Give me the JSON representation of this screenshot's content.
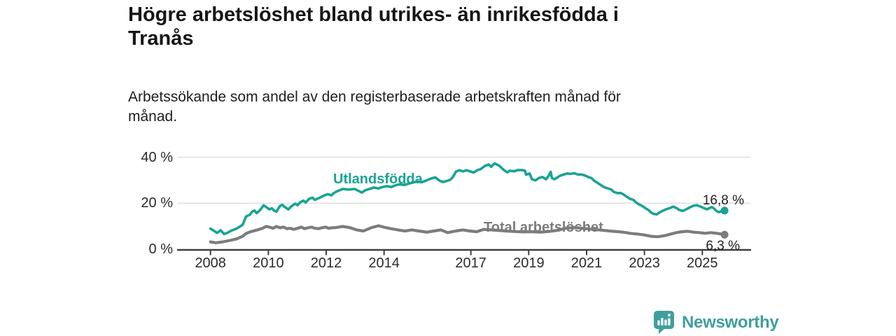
{
  "header": {
    "title_line1": "Högre arbetslöshet bland utrikes- än inrikesfödda i",
    "title_line2": "Tranås",
    "subtitle_line1": "Arbetssökande som andel av den registerbaserade arbetskraften månad för",
    "subtitle_line2": "månad."
  },
  "footer": {
    "brand": "Newsworthy"
  },
  "colors": {
    "accent_teal": "#19a394",
    "line_gray": "#7c7c7c",
    "axis": "#3f3f3f",
    "grid": "#dadada",
    "brand_teal": "#3f9e9e",
    "text_dark": "#161616"
  },
  "chart_data": {
    "type": "line",
    "title": "Högre arbetslöshet bland utrikes- än inrikesfödda i Tranås",
    "subtitle": "Arbetssökande som andel av den registerbaserade arbetskraften månad för månad.",
    "xlabel": "",
    "ylabel": "",
    "xlim": [
      2007.9,
      2026.4
    ],
    "ylim": [
      0,
      40
    ],
    "grid": "horizontal",
    "legend_position": "inline-labels",
    "y_axis": {
      "ticks": [
        {
          "value": 0,
          "label": "0 %"
        },
        {
          "value": 20,
          "label": "20 %"
        },
        {
          "value": 40,
          "label": "40 %"
        }
      ]
    },
    "x_axis": {
      "ticks": [
        {
          "year": 2008,
          "label": "2008"
        },
        {
          "year": 2010,
          "label": "2010"
        },
        {
          "year": 2012,
          "label": "2012"
        },
        {
          "year": 2014,
          "label": "2014"
        },
        {
          "year": 2017,
          "label": "2017"
        },
        {
          "year": 2019,
          "label": "2019"
        },
        {
          "year": 2021,
          "label": "2021"
        },
        {
          "year": 2023,
          "label": "2023"
        },
        {
          "year": 2025,
          "label": "2025"
        }
      ]
    },
    "series": [
      {
        "name": "Utlandsfödda",
        "color": "#19a394",
        "width": 3.6,
        "end_label": "16,8 %",
        "end_value": 16.8,
        "points": [
          [
            2008.0,
            8.9
          ],
          [
            2008.12,
            8.0
          ],
          [
            2008.23,
            7.1
          ],
          [
            2008.35,
            8.2
          ],
          [
            2008.47,
            6.6
          ],
          [
            2008.6,
            7.2
          ],
          [
            2008.71,
            8.0
          ],
          [
            2008.91,
            9.0
          ],
          [
            2009.11,
            10.6
          ],
          [
            2009.23,
            14.2
          ],
          [
            2009.36,
            15.0
          ],
          [
            2009.44,
            16.3
          ],
          [
            2009.52,
            16.8
          ],
          [
            2009.6,
            15.7
          ],
          [
            2009.72,
            17.1
          ],
          [
            2009.84,
            19.1
          ],
          [
            2009.92,
            18.3
          ],
          [
            2010.04,
            17.3
          ],
          [
            2010.12,
            17.8
          ],
          [
            2010.2,
            16.8
          ],
          [
            2010.28,
            16.3
          ],
          [
            2010.4,
            18.8
          ],
          [
            2010.48,
            19.3
          ],
          [
            2010.57,
            18.3
          ],
          [
            2010.69,
            17.3
          ],
          [
            2010.81,
            18.8
          ],
          [
            2010.93,
            19.8
          ],
          [
            2011.01,
            19.1
          ],
          [
            2011.09,
            20.3
          ],
          [
            2011.21,
            21.1
          ],
          [
            2011.29,
            20.3
          ],
          [
            2011.41,
            21.9
          ],
          [
            2011.53,
            22.4
          ],
          [
            2011.61,
            21.4
          ],
          [
            2011.69,
            21.9
          ],
          [
            2011.81,
            22.6
          ],
          [
            2011.93,
            23.4
          ],
          [
            2012.06,
            23.9
          ],
          [
            2012.18,
            23.4
          ],
          [
            2012.26,
            24.4
          ],
          [
            2012.38,
            25.2
          ],
          [
            2012.46,
            25.6
          ],
          [
            2012.58,
            26.2
          ],
          [
            2012.78,
            25.9
          ],
          [
            2012.98,
            26.2
          ],
          [
            2013.14,
            25.2
          ],
          [
            2013.23,
            24.6
          ],
          [
            2013.35,
            25.6
          ],
          [
            2013.5,
            26.2
          ],
          [
            2013.65,
            26.8
          ],
          [
            2013.8,
            26.4
          ],
          [
            2013.95,
            27.0
          ],
          [
            2014.1,
            27.4
          ],
          [
            2014.25,
            27.0
          ],
          [
            2014.4,
            27.8
          ],
          [
            2014.55,
            28.2
          ],
          [
            2014.7,
            27.9
          ],
          [
            2014.85,
            28.5
          ],
          [
            2015.0,
            29.0
          ],
          [
            2015.15,
            29.4
          ],
          [
            2015.3,
            29.1
          ],
          [
            2015.45,
            29.8
          ],
          [
            2015.6,
            30.6
          ],
          [
            2015.77,
            31.2
          ],
          [
            2015.93,
            29.7
          ],
          [
            2016.05,
            29.2
          ],
          [
            2016.17,
            29.7
          ],
          [
            2016.29,
            30.2
          ],
          [
            2016.37,
            31.2
          ],
          [
            2016.49,
            33.8
          ],
          [
            2016.61,
            34.3
          ],
          [
            2016.73,
            33.8
          ],
          [
            2016.85,
            34.3
          ],
          [
            2016.98,
            33.8
          ],
          [
            2017.1,
            33.3
          ],
          [
            2017.22,
            34.3
          ],
          [
            2017.34,
            34.8
          ],
          [
            2017.5,
            36.3
          ],
          [
            2017.62,
            36.8
          ],
          [
            2017.7,
            35.8
          ],
          [
            2017.82,
            37.3
          ],
          [
            2017.98,
            36.3
          ],
          [
            2018.14,
            34.4
          ],
          [
            2018.26,
            33.4
          ],
          [
            2018.34,
            34.1
          ],
          [
            2018.5,
            33.9
          ],
          [
            2018.63,
            34.4
          ],
          [
            2018.75,
            34.4
          ],
          [
            2018.87,
            34.1
          ],
          [
            2018.91,
            32.4
          ],
          [
            2019.03,
            32.9
          ],
          [
            2019.11,
            30.4
          ],
          [
            2019.23,
            29.9
          ],
          [
            2019.35,
            30.9
          ],
          [
            2019.47,
            31.4
          ],
          [
            2019.6,
            30.4
          ],
          [
            2019.68,
            31.7
          ],
          [
            2019.76,
            33.6
          ],
          [
            2019.8,
            31.0
          ],
          [
            2019.88,
            30.4
          ],
          [
            2019.96,
            30.9
          ],
          [
            2020.08,
            31.9
          ],
          [
            2020.2,
            32.4
          ],
          [
            2020.32,
            32.9
          ],
          [
            2020.44,
            32.7
          ],
          [
            2020.57,
            33.0
          ],
          [
            2020.69,
            32.5
          ],
          [
            2020.85,
            32.4
          ],
          [
            2020.97,
            31.9
          ],
          [
            2021.05,
            31.4
          ],
          [
            2021.17,
            30.9
          ],
          [
            2021.25,
            29.9
          ],
          [
            2021.37,
            28.9
          ],
          [
            2021.49,
            27.9
          ],
          [
            2021.62,
            26.9
          ],
          [
            2021.74,
            26.4
          ],
          [
            2021.86,
            25.9
          ],
          [
            2021.94,
            24.9
          ],
          [
            2022.06,
            24.4
          ],
          [
            2022.18,
            24.4
          ],
          [
            2022.26,
            23.9
          ],
          [
            2022.38,
            22.9
          ],
          [
            2022.5,
            21.9
          ],
          [
            2022.62,
            21.4
          ],
          [
            2022.7,
            20.4
          ],
          [
            2022.82,
            19.4
          ],
          [
            2022.91,
            18.9
          ],
          [
            2023.03,
            17.9
          ],
          [
            2023.15,
            16.9
          ],
          [
            2023.23,
            15.9
          ],
          [
            2023.31,
            15.4
          ],
          [
            2023.43,
            15.1
          ],
          [
            2023.51,
            15.9
          ],
          [
            2023.63,
            16.7
          ],
          [
            2023.76,
            17.4
          ],
          [
            2023.88,
            17.9
          ],
          [
            2024.0,
            18.5
          ],
          [
            2024.12,
            17.8
          ],
          [
            2024.2,
            17.1
          ],
          [
            2024.32,
            16.6
          ],
          [
            2024.44,
            17.3
          ],
          [
            2024.56,
            18.1
          ],
          [
            2024.69,
            18.9
          ],
          [
            2024.81,
            19.1
          ],
          [
            2024.93,
            18.6
          ],
          [
            2025.05,
            17.9
          ],
          [
            2025.17,
            17.3
          ],
          [
            2025.25,
            17.9
          ],
          [
            2025.33,
            18.3
          ],
          [
            2025.41,
            17.6
          ],
          [
            2025.49,
            16.6
          ],
          [
            2025.57,
            16.1
          ],
          [
            2025.69,
            16.6
          ],
          [
            2025.77,
            16.8
          ]
        ]
      },
      {
        "name": "Total arbetslöshet",
        "color": "#7c7c7c",
        "width": 4.2,
        "end_label": "6,3 %",
        "end_value": 6.3,
        "points": [
          [
            2008.0,
            3.2
          ],
          [
            2008.18,
            2.8
          ],
          [
            2008.43,
            3.2
          ],
          [
            2008.67,
            3.8
          ],
          [
            2008.91,
            4.5
          ],
          [
            2009.11,
            5.6
          ],
          [
            2009.23,
            6.8
          ],
          [
            2009.39,
            7.6
          ],
          [
            2009.6,
            8.3
          ],
          [
            2009.8,
            9.1
          ],
          [
            2009.92,
            9.9
          ],
          [
            2010.04,
            9.6
          ],
          [
            2010.16,
            9.1
          ],
          [
            2010.28,
            9.9
          ],
          [
            2010.4,
            9.3
          ],
          [
            2010.52,
            9.6
          ],
          [
            2010.64,
            8.9
          ],
          [
            2010.76,
            9.1
          ],
          [
            2010.88,
            8.6
          ],
          [
            2011.01,
            9.1
          ],
          [
            2011.13,
            9.6
          ],
          [
            2011.25,
            8.9
          ],
          [
            2011.37,
            9.3
          ],
          [
            2011.49,
            9.6
          ],
          [
            2011.61,
            9.1
          ],
          [
            2011.73,
            8.9
          ],
          [
            2011.85,
            9.3
          ],
          [
            2011.97,
            9.6
          ],
          [
            2012.09,
            9.1
          ],
          [
            2012.21,
            9.3
          ],
          [
            2012.33,
            9.4
          ],
          [
            2012.57,
            9.9
          ],
          [
            2012.81,
            9.4
          ],
          [
            2013.05,
            8.4
          ],
          [
            2013.29,
            7.9
          ],
          [
            2013.57,
            9.4
          ],
          [
            2013.81,
            10.2
          ],
          [
            2014.05,
            9.4
          ],
          [
            2014.24,
            8.9
          ],
          [
            2014.48,
            8.4
          ],
          [
            2014.72,
            7.9
          ],
          [
            2014.96,
            8.4
          ],
          [
            2015.2,
            7.9
          ],
          [
            2015.48,
            7.4
          ],
          [
            2015.72,
            7.9
          ],
          [
            2015.96,
            8.4
          ],
          [
            2016.2,
            7.2
          ],
          [
            2016.48,
            7.9
          ],
          [
            2016.72,
            8.4
          ],
          [
            2016.96,
            7.9
          ],
          [
            2017.2,
            7.6
          ],
          [
            2017.44,
            8.6
          ],
          [
            2017.68,
            8.4
          ],
          [
            2017.92,
            8.2
          ],
          [
            2018.2,
            7.9
          ],
          [
            2018.5,
            7.7
          ],
          [
            2018.8,
            7.5
          ],
          [
            2019.1,
            7.6
          ],
          [
            2019.4,
            7.4
          ],
          [
            2019.7,
            7.7
          ],
          [
            2020.0,
            8.2
          ],
          [
            2020.3,
            9.2
          ],
          [
            2020.6,
            9.4
          ],
          [
            2020.9,
            9.0
          ],
          [
            2021.2,
            8.6
          ],
          [
            2021.5,
            8.3
          ],
          [
            2021.8,
            7.9
          ],
          [
            2022.1,
            7.6
          ],
          [
            2022.26,
            7.4
          ],
          [
            2022.38,
            7.2
          ],
          [
            2022.5,
            6.9
          ],
          [
            2022.74,
            6.6
          ],
          [
            2022.99,
            6.2
          ],
          [
            2023.23,
            5.6
          ],
          [
            2023.47,
            5.4
          ],
          [
            2023.71,
            5.9
          ],
          [
            2023.91,
            6.6
          ],
          [
            2024.1,
            7.2
          ],
          [
            2024.3,
            7.6
          ],
          [
            2024.5,
            7.8
          ],
          [
            2024.7,
            7.4
          ],
          [
            2024.9,
            7.2
          ],
          [
            2025.1,
            6.9
          ],
          [
            2025.3,
            7.2
          ],
          [
            2025.5,
            6.9
          ],
          [
            2025.65,
            6.6
          ],
          [
            2025.77,
            6.3
          ]
        ]
      }
    ]
  }
}
